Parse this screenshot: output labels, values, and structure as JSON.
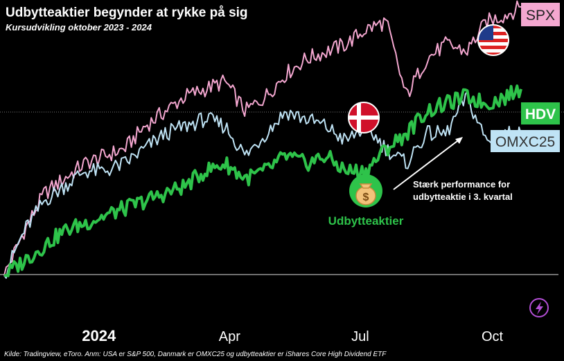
{
  "header": {
    "title": "Udbytteaktier begynder at rykke på sig",
    "subtitle": "Kursudvikling oktober 2023 - 2024"
  },
  "footer": {
    "source": "Kilde: Tradingview, eToro. Anm: USA er S&P 500, Danmark er OMXC25 og udbytteaktier er iShares Core High Dividend ETF"
  },
  "annotations": {
    "arrow_text_line1": "Stærk performance for",
    "arrow_text_line2": "udbytteaktie i 3. kvartal",
    "dividend_label": "Udbytteaktier"
  },
  "icons": {
    "flag_us": "us-flag-icon",
    "flag_dk": "danish-flag-icon",
    "dividend": "money-bag-icon",
    "watermark": "lightning-icon"
  },
  "chart_data": {
    "type": "line",
    "title": "Udbytteaktier begynder at rykke på sig",
    "subtitle": "Kursudvikling oktober 2023 - 2024",
    "xlabel": "",
    "ylabel": "",
    "x_tick_labels": [
      "2024",
      "Apr",
      "Jul",
      "Oct"
    ],
    "x": [
      "2023-10-27",
      "2023-11-10",
      "2023-11-24",
      "2023-12-08",
      "2023-12-22",
      "2024-01-05",
      "2024-01-19",
      "2024-02-02",
      "2024-02-16",
      "2024-03-01",
      "2024-03-15",
      "2024-03-29",
      "2024-04-12",
      "2024-04-26",
      "2024-05-10",
      "2024-05-24",
      "2024-06-07",
      "2024-06-21",
      "2024-07-05",
      "2024-07-19",
      "2024-08-02",
      "2024-08-16",
      "2024-08-30",
      "2024-09-13",
      "2024-09-27",
      "2024-10-11",
      "2024-10-21"
    ],
    "ylim": [
      -2,
      36
    ],
    "grid": false,
    "series": [
      {
        "name": "SPX",
        "color": "#f4a7d0",
        "values": [
          0,
          6,
          11,
          13,
          15,
          16,
          17,
          20,
          22,
          24,
          25,
          26,
          22,
          24,
          27,
          29,
          30,
          31,
          33,
          34,
          24,
          29,
          31,
          30,
          34,
          35,
          36
        ]
      },
      {
        "name": "OMXC25",
        "color": "#bfe3f5",
        "values": [
          0,
          6,
          10,
          12,
          14,
          14,
          15,
          17,
          19,
          20,
          21,
          20,
          16,
          19,
          22,
          21,
          20,
          18,
          20,
          17,
          15,
          19,
          19,
          24,
          18,
          19,
          19
        ]
      },
      {
        "name": "HDV",
        "color": "#2ec34a",
        "values": [
          0,
          2,
          4,
          6,
          7,
          8,
          9,
          10,
          11,
          12,
          14,
          15,
          13,
          14,
          16,
          15,
          16,
          14,
          14,
          17,
          19,
          22,
          23,
          24,
          23,
          24,
          25
        ]
      }
    ],
    "legend": [
      "SPX",
      "HDV",
      "OMXC25"
    ]
  }
}
